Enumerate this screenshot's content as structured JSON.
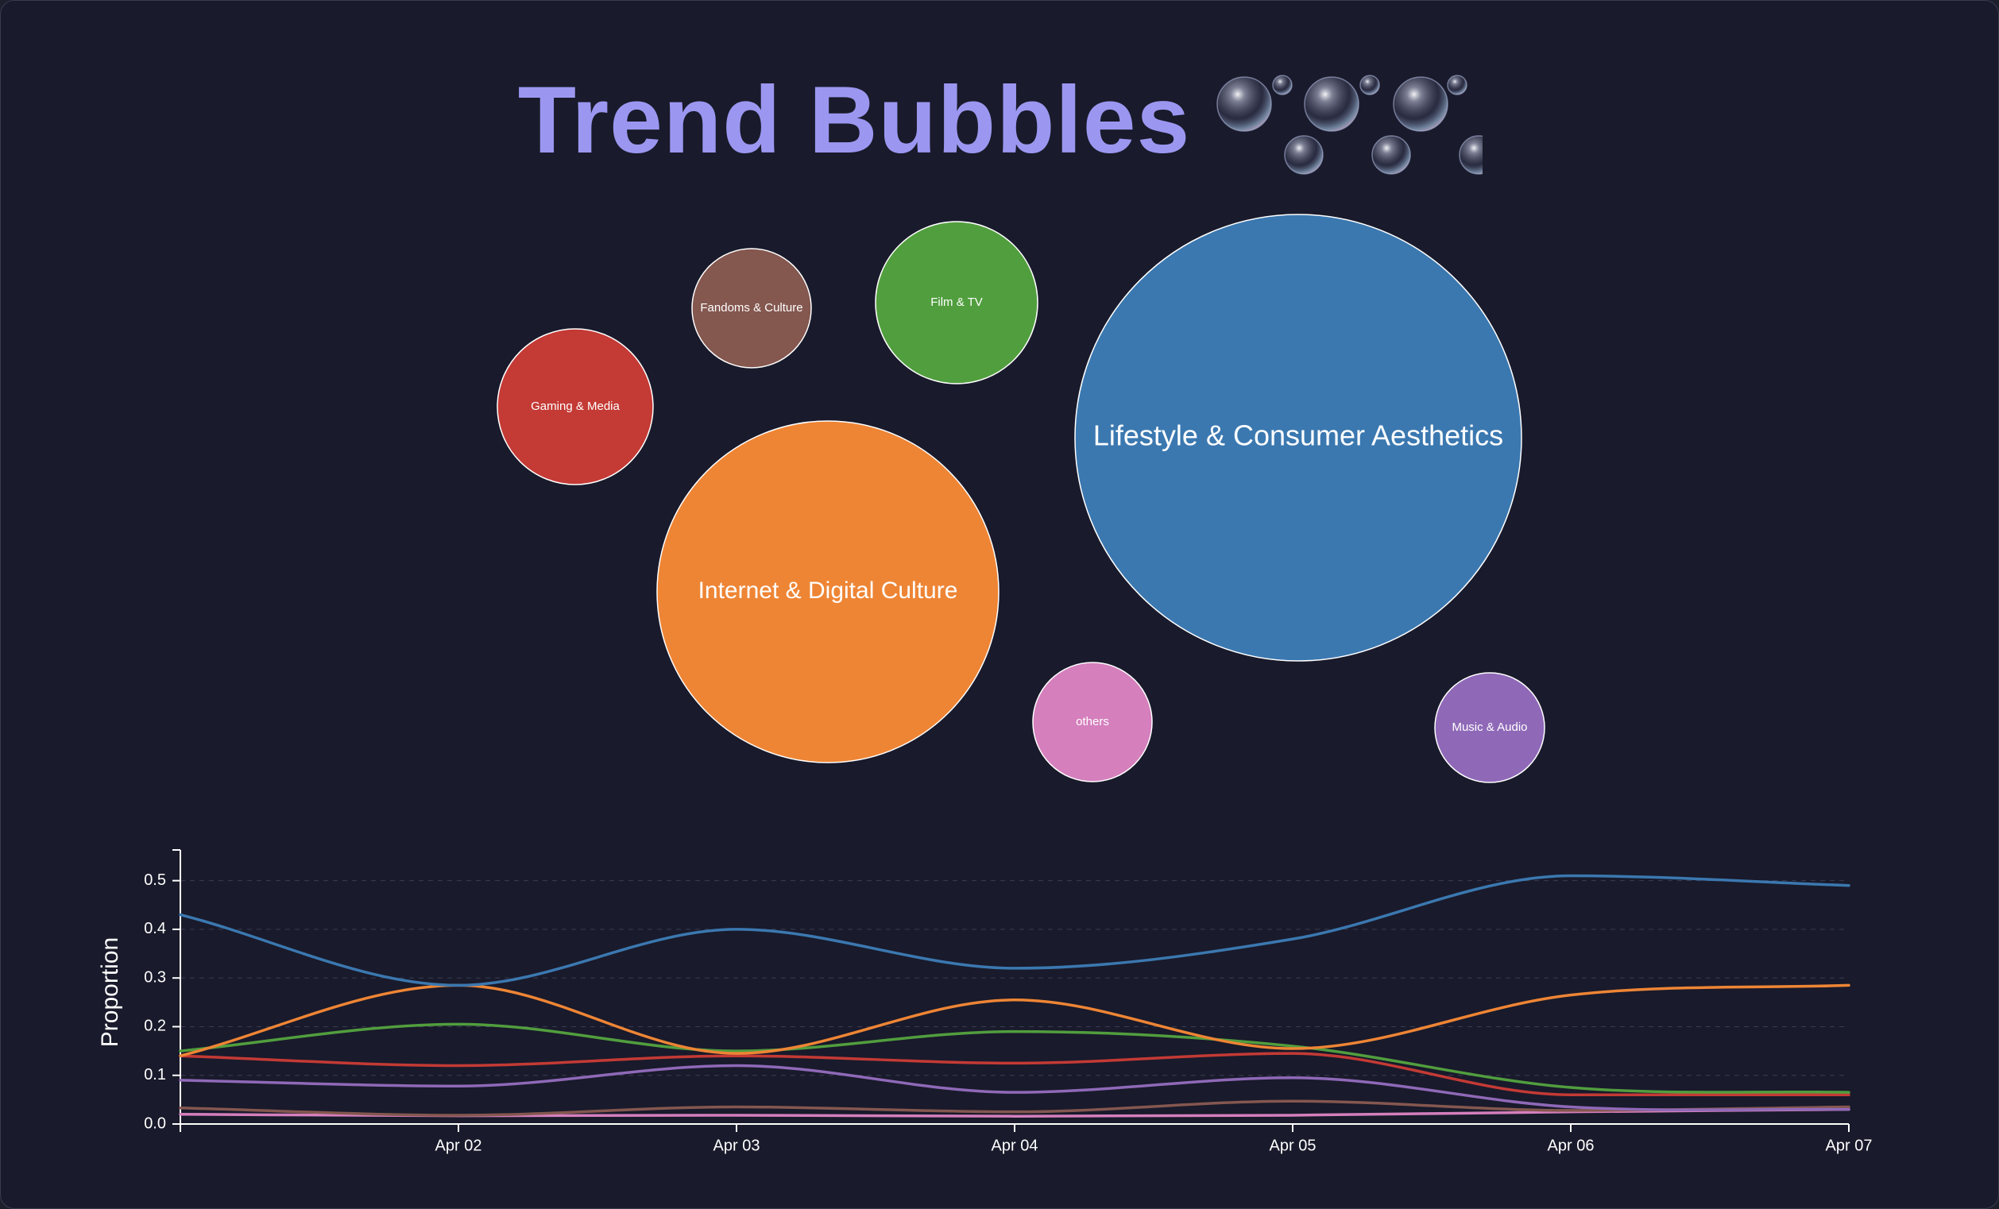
{
  "title": "Trend Bubbles",
  "chart_data": [
    {
      "type": "bubble",
      "categories": [
        "Lifestyle & Consumer Aesthetics",
        "Internet & Digital Culture",
        "Film & TV",
        "Gaming & Media",
        "Fandoms & Culture",
        "others",
        "Music & Audio"
      ],
      "colors": [
        "#3b78b0",
        "#ee8535",
        "#519e3e",
        "#c43a35",
        "#84574f",
        "#d57fbd",
        "#8f69b8"
      ]
    },
    {
      "type": "line",
      "ylabel": "Proportion",
      "ylim": [
        0,
        0.55
      ],
      "yticks": [
        "0.0",
        "0.1",
        "0.2",
        "0.3",
        "0.4",
        "0.5"
      ],
      "xlim": [
        "Apr 01",
        "Apr 07"
      ],
      "x": [
        "Apr 01",
        "Apr 02",
        "Apr 03",
        "Apr 04",
        "Apr 05",
        "Apr 06",
        "Apr 07"
      ],
      "xticks": [
        "Apr 02",
        "Apr 03",
        "Apr 04",
        "Apr 05",
        "Apr 06",
        "Apr 07"
      ],
      "grid": "horizontal dashed",
      "series": [
        {
          "color": "#3b78b0",
          "values": [
            0.43,
            0.285,
            0.4,
            0.32,
            0.38,
            0.51,
            0.49
          ]
        },
        {
          "color": "#ee8535",
          "values": [
            0.14,
            0.285,
            0.145,
            0.255,
            0.155,
            0.265,
            0.285
          ]
        },
        {
          "color": "#519e3e",
          "values": [
            0.15,
            0.205,
            0.15,
            0.19,
            0.16,
            0.075,
            0.065
          ]
        },
        {
          "color": "#c43a35",
          "values": [
            0.14,
            0.12,
            0.14,
            0.125,
            0.145,
            0.06,
            0.06
          ]
        },
        {
          "color": "#8f69b8",
          "values": [
            0.09,
            0.078,
            0.12,
            0.065,
            0.095,
            0.035,
            0.03
          ]
        },
        {
          "color": "#84574f",
          "values": [
            0.033,
            0.018,
            0.035,
            0.025,
            0.047,
            0.028,
            0.035
          ]
        },
        {
          "color": "#d57fbd",
          "values": [
            0.02,
            0.017,
            0.018,
            0.016,
            0.018,
            0.025,
            0.03
          ]
        }
      ]
    }
  ]
}
